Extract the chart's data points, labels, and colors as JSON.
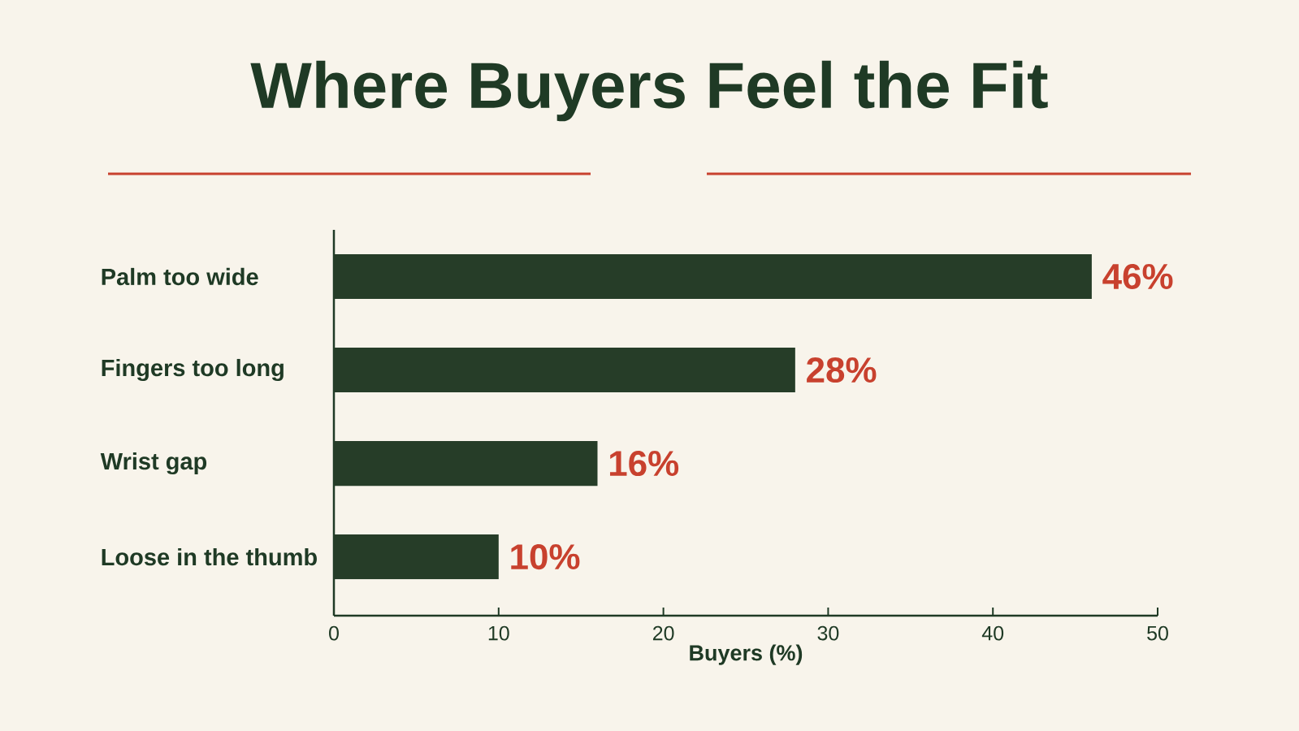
{
  "chart_data": {
    "type": "bar",
    "orientation": "horizontal",
    "title": "Where Buyers Feel the Fit",
    "xlabel": "Buyers (%)",
    "categories": [
      "Palm too wide",
      "Fingers too long",
      "Wrist gap",
      "Loose in the thumb"
    ],
    "values": [
      46,
      28,
      16,
      10
    ],
    "value_labels": [
      "46%",
      "28%",
      "16%",
      "10%"
    ],
    "color": "#263d28",
    "xlim": [
      0,
      50
    ],
    "xticks": [
      0,
      10,
      20,
      30,
      40,
      50
    ]
  }
}
